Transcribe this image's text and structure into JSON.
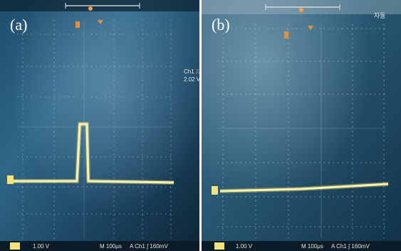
{
  "panels": [
    {
      "label": "(a)",
      "channel_readout": {
        "line1": "Ch1 ⎍",
        "line2": "2.02 V"
      },
      "footer": {
        "ch_scale": "1.00 V",
        "time_scale": "M 100μs",
        "trigger": "A  Ch1  ∫  160mV"
      }
    },
    {
      "label": "(b)",
      "top_right_text": "자동",
      "footer": {
        "ch_scale": "1.00 V",
        "time_scale": "M 100μs",
        "trigger": "A  Ch1  ∫  160mV"
      }
    }
  ]
}
